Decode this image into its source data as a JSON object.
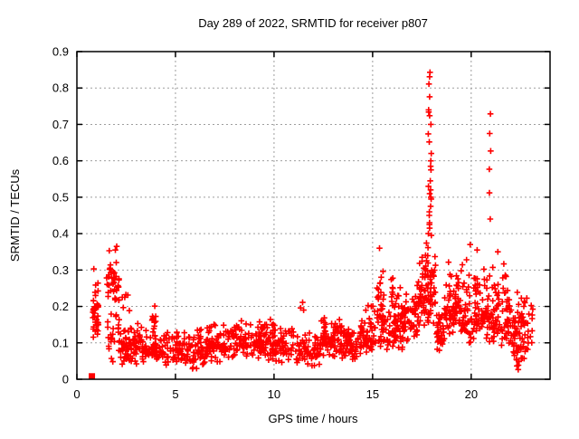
{
  "figure": {
    "kind": "gnuplot-scatter-screenshot",
    "background": "#ffffff",
    "border_color": "#000000",
    "grid_color": "#9e9e9e"
  },
  "chart_data": {
    "type": "scatter",
    "title": "Day 289 of 2022, SRMTID for receiver p807",
    "xlabel": "GPS time / hours",
    "ylabel": "SRMTID / TECUs",
    "xlim": [
      0,
      24
    ],
    "ylim": [
      0,
      0.9
    ],
    "grid": "dotted",
    "legend": "none",
    "marker": "plus",
    "marker_color": "#ff0000",
    "xticks": [
      {
        "v": 0,
        "label": "0"
      },
      {
        "v": 5,
        "label": "5"
      },
      {
        "v": 10,
        "label": "10"
      },
      {
        "v": 15,
        "label": "15"
      },
      {
        "v": 20,
        "label": "20"
      }
    ],
    "yticks": [
      {
        "v": 0.0,
        "label": "0"
      },
      {
        "v": 0.1,
        "label": "0.1"
      },
      {
        "v": 0.2,
        "label": "0.2"
      },
      {
        "v": 0.3,
        "label": "0.3"
      },
      {
        "v": 0.4,
        "label": "0.4"
      },
      {
        "v": 0.5,
        "label": "0.5"
      },
      {
        "v": 0.6,
        "label": "0.6"
      },
      {
        "v": 0.7,
        "label": "0.7"
      },
      {
        "v": 0.8,
        "label": "0.8"
      },
      {
        "v": 0.9,
        "label": "0.9"
      }
    ],
    "seed": 20221017,
    "square_point": {
      "x": 0.76,
      "y": 0.008,
      "note": "solid red square marker on baseline near hour 0.8"
    },
    "outlier_points": [
      [
        11.35,
        0.196
      ],
      [
        11.45,
        0.211
      ],
      [
        11.5,
        0.19
      ],
      [
        2.02,
        0.365
      ],
      [
        1.95,
        0.355
      ],
      [
        0.86,
        0.303
      ],
      [
        19.95,
        0.37
      ],
      [
        20.3,
        0.355
      ],
      [
        21.35,
        0.35
      ],
      [
        15.35,
        0.36
      ]
    ],
    "spike_columns": [
      {
        "x0": 17.82,
        "x1": 17.98,
        "values": [
          0.843,
          0.831,
          0.811,
          0.776,
          0.74,
          0.734,
          0.724,
          0.7,
          0.674,
          0.652,
          0.62,
          0.6,
          0.585,
          0.575,
          0.545,
          0.53,
          0.52,
          0.51,
          0.5,
          0.495,
          0.475,
          0.46,
          0.45,
          0.43,
          0.425,
          0.415,
          0.4,
          0.395
        ]
      },
      {
        "x0": 20.92,
        "x1": 20.99,
        "values": [
          0.729,
          0.675,
          0.627,
          0.577,
          0.512,
          0.44
        ]
      }
    ],
    "density_bands": [
      {
        "x0": 0.8,
        "x1": 1.1,
        "n": 30,
        "ylo": 0.07,
        "yhi": 0.305,
        "mode": 0.18
      },
      {
        "x0": 0.82,
        "x1": 0.92,
        "n": 8,
        "ylo": 0.185,
        "yhi": 0.205,
        "mode": 0.195
      },
      {
        "x0": 1.5,
        "x1": 2.15,
        "n": 40,
        "ylo": 0.2,
        "yhi": 0.355,
        "mode": 0.275
      },
      {
        "x0": 1.55,
        "x1": 2.2,
        "n": 25,
        "ylo": 0.04,
        "yhi": 0.2,
        "mode": 0.12
      },
      {
        "x0": 2.2,
        "x1": 3.6,
        "n": 95,
        "ylo": 0.03,
        "yhi": 0.16,
        "mode": 0.085
      },
      {
        "x0": 2.3,
        "x1": 2.7,
        "n": 6,
        "ylo": 0.17,
        "yhi": 0.27,
        "mode": 0.2
      },
      {
        "x0": 3.8,
        "x1": 4.0,
        "n": 12,
        "ylo": 0.1,
        "yhi": 0.225,
        "mode": 0.15
      },
      {
        "x0": 3.6,
        "x1": 5.0,
        "n": 75,
        "ylo": 0.035,
        "yhi": 0.14,
        "mode": 0.08
      },
      {
        "x0": 5.0,
        "x1": 6.5,
        "n": 95,
        "ylo": 0.02,
        "yhi": 0.15,
        "mode": 0.075
      },
      {
        "x0": 6.5,
        "x1": 8.0,
        "n": 95,
        "ylo": 0.04,
        "yhi": 0.16,
        "mode": 0.09
      },
      {
        "x0": 8.0,
        "x1": 9.5,
        "n": 90,
        "ylo": 0.05,
        "yhi": 0.17,
        "mode": 0.1
      },
      {
        "x0": 9.5,
        "x1": 11.0,
        "n": 90,
        "ylo": 0.04,
        "yhi": 0.17,
        "mode": 0.1
      },
      {
        "x0": 11.0,
        "x1": 12.4,
        "n": 75,
        "ylo": 0.03,
        "yhi": 0.13,
        "mode": 0.075
      },
      {
        "x0": 12.4,
        "x1": 13.4,
        "n": 70,
        "ylo": 0.05,
        "yhi": 0.17,
        "mode": 0.11
      },
      {
        "x0": 13.4,
        "x1": 14.4,
        "n": 65,
        "ylo": 0.04,
        "yhi": 0.15,
        "mode": 0.09
      },
      {
        "x0": 14.4,
        "x1": 15.15,
        "n": 55,
        "ylo": 0.06,
        "yhi": 0.22,
        "mode": 0.13
      },
      {
        "x0": 15.2,
        "x1": 15.55,
        "n": 30,
        "ylo": 0.1,
        "yhi": 0.36,
        "mode": 0.2
      },
      {
        "x0": 15.4,
        "x1": 16.3,
        "n": 65,
        "ylo": 0.07,
        "yhi": 0.25,
        "mode": 0.14
      },
      {
        "x0": 15.9,
        "x1": 16.05,
        "n": 8,
        "ylo": 0.2,
        "yhi": 0.33,
        "mode": 0.25
      },
      {
        "x0": 16.3,
        "x1": 17.3,
        "n": 75,
        "ylo": 0.08,
        "yhi": 0.28,
        "mode": 0.16
      },
      {
        "x0": 17.3,
        "x1": 18.2,
        "n": 80,
        "ylo": 0.12,
        "yhi": 0.37,
        "mode": 0.22
      },
      {
        "x0": 17.5,
        "x1": 17.95,
        "n": 15,
        "ylo": 0.27,
        "yhi": 0.38,
        "mode": 0.31
      },
      {
        "x0": 18.2,
        "x1": 18.65,
        "n": 40,
        "ylo": 0.07,
        "yhi": 0.22,
        "mode": 0.13
      },
      {
        "x0": 18.65,
        "x1": 19.3,
        "n": 55,
        "ylo": 0.12,
        "yhi": 0.35,
        "mode": 0.2
      },
      {
        "x0": 19.3,
        "x1": 20.1,
        "n": 60,
        "ylo": 0.1,
        "yhi": 0.33,
        "mode": 0.17
      },
      {
        "x0": 20.1,
        "x1": 20.9,
        "n": 65,
        "ylo": 0.1,
        "yhi": 0.35,
        "mode": 0.18
      },
      {
        "x0": 20.9,
        "x1": 22.0,
        "n": 85,
        "ylo": 0.08,
        "yhi": 0.33,
        "mode": 0.17
      },
      {
        "x0": 22.0,
        "x1": 22.9,
        "n": 75,
        "ylo": 0.04,
        "yhi": 0.24,
        "mode": 0.13
      },
      {
        "x0": 22.25,
        "x1": 22.55,
        "n": 6,
        "ylo": 0.02,
        "yhi": 0.06,
        "mode": 0.04
      },
      {
        "x0": 22.9,
        "x1": 23.15,
        "n": 8,
        "ylo": 0.09,
        "yhi": 0.21,
        "mode": 0.14
      }
    ]
  }
}
